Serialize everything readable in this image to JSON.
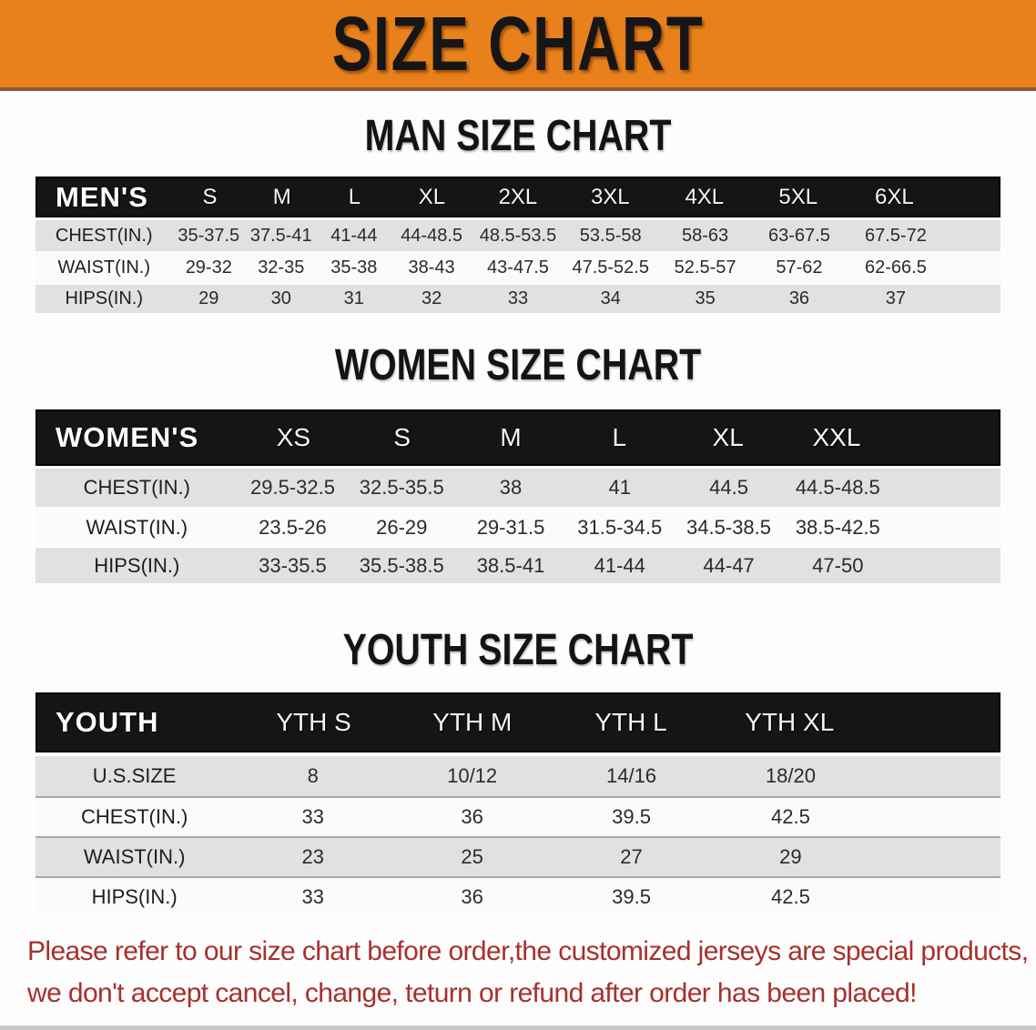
{
  "banner": {
    "title": "SIZE CHART"
  },
  "colors": {
    "banner_bg": "#E8811B",
    "banner_edge": "#8A5A30",
    "header_bar": "#151515",
    "row_gray": "#E1E1E1",
    "row_white": "#FBFBFB",
    "footer_red": "#A8302C"
  },
  "chart_data": [
    {
      "type": "table",
      "title": "MAN SIZE CHART",
      "columns": [
        "MEN'S",
        "S",
        "M",
        "L",
        "XL",
        "2XL",
        "3XL",
        "4XL",
        "5XL",
        "6XL"
      ],
      "rows": [
        [
          "CHEST(IN.)",
          "35-37.5",
          "37.5-41",
          "41-44",
          "44-48.5",
          "48.5-53.5",
          "53.5-58",
          "58-63",
          "63-67.5",
          "67.5-72"
        ],
        [
          "WAIST(IN.)",
          "29-32",
          "32-35",
          "35-38",
          "38-43",
          "43-47.5",
          "47.5-52.5",
          "52.5-57",
          "57-62",
          "62-66.5"
        ],
        [
          "HIPS(IN.)",
          "29",
          "30",
          "31",
          "32",
          "33",
          "34",
          "35",
          "36",
          "37"
        ]
      ]
    },
    {
      "type": "table",
      "title": "WOMEN SIZE CHART",
      "columns": [
        "WOMEN'S",
        "XS",
        "S",
        "M",
        "L",
        "XL",
        "XXL"
      ],
      "rows": [
        [
          "CHEST(IN.)",
          "29.5-32.5",
          "32.5-35.5",
          "38",
          "41",
          "44.5",
          "44.5-48.5"
        ],
        [
          "WAIST(IN.)",
          "23.5-26",
          "26-29",
          "29-31.5",
          "31.5-34.5",
          "34.5-38.5",
          "38.5-42.5"
        ],
        [
          "HIPS(IN.)",
          "33-35.5",
          "35.5-38.5",
          "38.5-41",
          "41-44",
          "44-47",
          "47-50"
        ]
      ]
    },
    {
      "type": "table",
      "title": "YOUTH SIZE CHART",
      "columns": [
        "YOUTH",
        "YTH S",
        "YTH M",
        "YTH L",
        "YTH XL"
      ],
      "rows": [
        [
          "U.S.SIZE",
          "8",
          "10/12",
          "14/16",
          "18/20"
        ],
        [
          "CHEST(IN.)",
          "33",
          "36",
          "39.5",
          "42.5"
        ],
        [
          "WAIST(IN.)",
          "23",
          "25",
          "27",
          "29"
        ],
        [
          "HIPS(IN.)",
          "33",
          "36",
          "39.5",
          "42.5"
        ]
      ]
    }
  ],
  "footer": {
    "line1": "Please refer to our size chart before order,the customized jerseys are special products,",
    "line2": "we don't accept cancel, change, teturn or refund after order has been placed!"
  }
}
